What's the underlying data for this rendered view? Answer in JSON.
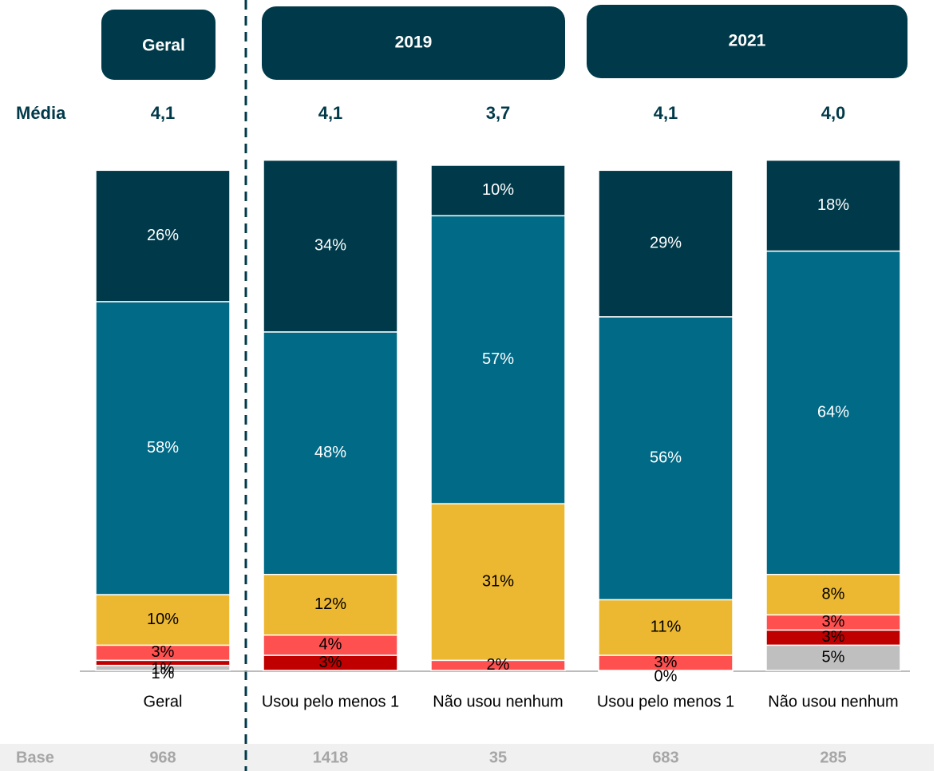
{
  "chart_data": {
    "type": "bar",
    "stacked": true,
    "groups": [
      "Geral",
      "2019",
      "2021"
    ],
    "categories": [
      "Geral",
      "Usou pelo menos 1",
      "Não usou nenhum",
      "Usou pelo menos 1",
      "Não usou nenhum"
    ],
    "ylim": [
      0,
      100
    ],
    "mean_label": "Média",
    "means": [
      "4,1",
      "4,1",
      "3,7",
      "4,1",
      "4,0"
    ],
    "base_label": "Base",
    "bases": [
      "968",
      "1418",
      "35",
      "683",
      "285"
    ],
    "series": [
      {
        "color": "#bfbfbf",
        "values": [
          1,
          null,
          null,
          null,
          5
        ],
        "value_labels": [
          "1%",
          null,
          null,
          null,
          "5%"
        ]
      },
      {
        "color": "#c00000",
        "values": [
          1,
          3,
          null,
          0,
          3
        ],
        "value_labels": [
          "1%",
          "3%",
          null,
          "0%",
          "3%"
        ]
      },
      {
        "color": "#ff5050",
        "values": [
          3,
          4,
          2,
          3,
          3
        ],
        "value_labels": [
          "3%",
          "4%",
          "2%",
          "3%",
          "3%"
        ]
      },
      {
        "color": "#ecb731",
        "values": [
          10,
          12,
          31,
          11,
          8
        ],
        "value_labels": [
          "10%",
          "12%",
          "31%",
          "11%",
          "8%"
        ]
      },
      {
        "color": "#006a87",
        "values": [
          58,
          48,
          57,
          56,
          64
        ],
        "value_labels": [
          "58%",
          "48%",
          "57%",
          "56%",
          "64%"
        ]
      },
      {
        "color": "#003a4a",
        "values": [
          26,
          34,
          10,
          29,
          18
        ],
        "value_labels": [
          "26%",
          "34%",
          "10%",
          "29%",
          "18%"
        ]
      }
    ]
  }
}
